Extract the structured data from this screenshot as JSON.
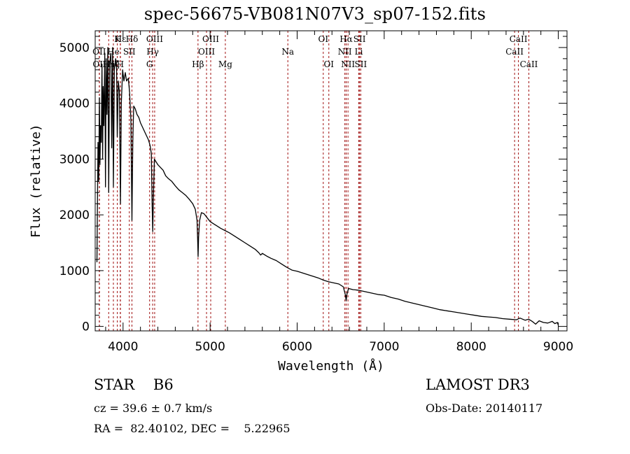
{
  "chart_data": {
    "type": "line",
    "title": "spec-56675-VB081N07V3_sp07-152.fits",
    "xlabel": "Wavelength (Å)",
    "ylabel": "Flux (relative)",
    "xlim": [
      3680,
      9100
    ],
    "ylim": [
      -80,
      5300
    ],
    "xticks": [
      4000,
      5000,
      6000,
      7000,
      8000,
      9000
    ],
    "yticks": [
      0,
      1000,
      2000,
      3000,
      4000,
      5000
    ],
    "x_minor_step": 200,
    "y_minor_step": 200,
    "grid": false,
    "line_color": "#000000",
    "marker_line_color": "#a01010",
    "series": [
      {
        "name": "flux",
        "points": [
          [
            3700,
            1150
          ],
          [
            3712,
            3300
          ],
          [
            3720,
            2600
          ],
          [
            3728,
            4100
          ],
          [
            3735,
            2900
          ],
          [
            3742,
            3600
          ],
          [
            3750,
            3300
          ],
          [
            3758,
            4700
          ],
          [
            3765,
            3000
          ],
          [
            3772,
            4300
          ],
          [
            3780,
            3600
          ],
          [
            3790,
            4900
          ],
          [
            3798,
            2500
          ],
          [
            3806,
            4800
          ],
          [
            3815,
            3800
          ],
          [
            3825,
            5000
          ],
          [
            3835,
            2400
          ],
          [
            3845,
            4700
          ],
          [
            3860,
            4900
          ],
          [
            3870,
            3200
          ],
          [
            3880,
            5000
          ],
          [
            3889,
            2500
          ],
          [
            3900,
            4600
          ],
          [
            3915,
            4800
          ],
          [
            3925,
            4700
          ],
          [
            3933,
            3400
          ],
          [
            3945,
            4400
          ],
          [
            3958,
            4200
          ],
          [
            3970,
            2200
          ],
          [
            3980,
            4000
          ],
          [
            3995,
            4600
          ],
          [
            4010,
            4400
          ],
          [
            4026,
            4550
          ],
          [
            4040,
            4400
          ],
          [
            4060,
            4450
          ],
          [
            4075,
            4200
          ],
          [
            4090,
            3700
          ],
          [
            4102,
            1900
          ],
          [
            4112,
            3300
          ],
          [
            4122,
            3950
          ],
          [
            4140,
            3900
          ],
          [
            4160,
            3800
          ],
          [
            4180,
            3750
          ],
          [
            4200,
            3650
          ],
          [
            4230,
            3550
          ],
          [
            4260,
            3450
          ],
          [
            4290,
            3350
          ],
          [
            4310,
            3250
          ],
          [
            4325,
            3100
          ],
          [
            4334,
            2200
          ],
          [
            4341,
            1700
          ],
          [
            4348,
            2300
          ],
          [
            4360,
            3000
          ],
          [
            4380,
            2950
          ],
          [
            4400,
            2900
          ],
          [
            4430,
            2850
          ],
          [
            4460,
            2800
          ],
          [
            4490,
            2700
          ],
          [
            4520,
            2650
          ],
          [
            4560,
            2600
          ],
          [
            4600,
            2520
          ],
          [
            4640,
            2450
          ],
          [
            4680,
            2400
          ],
          [
            4720,
            2350
          ],
          [
            4760,
            2280
          ],
          [
            4800,
            2200
          ],
          [
            4830,
            2100
          ],
          [
            4850,
            1900
          ],
          [
            4858,
            1500
          ],
          [
            4862,
            1250
          ],
          [
            4868,
            1600
          ],
          [
            4880,
            1900
          ],
          [
            4900,
            2040
          ],
          [
            4930,
            2020
          ],
          [
            4960,
            1960
          ],
          [
            5000,
            1880
          ],
          [
            5040,
            1840
          ],
          [
            5080,
            1800
          ],
          [
            5120,
            1760
          ],
          [
            5170,
            1720
          ],
          [
            5220,
            1680
          ],
          [
            5280,
            1620
          ],
          [
            5340,
            1560
          ],
          [
            5400,
            1500
          ],
          [
            5460,
            1440
          ],
          [
            5520,
            1380
          ],
          [
            5560,
            1320
          ],
          [
            5580,
            1280
          ],
          [
            5600,
            1310
          ],
          [
            5650,
            1260
          ],
          [
            5700,
            1220
          ],
          [
            5760,
            1180
          ],
          [
            5820,
            1120
          ],
          [
            5880,
            1060
          ],
          [
            5940,
            1010
          ],
          [
            6000,
            990
          ],
          [
            6060,
            960
          ],
          [
            6120,
            930
          ],
          [
            6180,
            900
          ],
          [
            6240,
            870
          ],
          [
            6300,
            830
          ],
          [
            6360,
            800
          ],
          [
            6420,
            780
          ],
          [
            6480,
            760
          ],
          [
            6530,
            710
          ],
          [
            6555,
            560
          ],
          [
            6563,
            460
          ],
          [
            6572,
            580
          ],
          [
            6590,
            680
          ],
          [
            6640,
            660
          ],
          [
            6700,
            650
          ],
          [
            6760,
            630
          ],
          [
            6820,
            610
          ],
          [
            6880,
            590
          ],
          [
            6940,
            570
          ],
          [
            7000,
            560
          ],
          [
            7080,
            520
          ],
          [
            7160,
            490
          ],
          [
            7240,
            450
          ],
          [
            7320,
            420
          ],
          [
            7400,
            390
          ],
          [
            7480,
            360
          ],
          [
            7560,
            330
          ],
          [
            7640,
            300
          ],
          [
            7720,
            280
          ],
          [
            7800,
            260
          ],
          [
            7880,
            240
          ],
          [
            7960,
            220
          ],
          [
            8040,
            200
          ],
          [
            8120,
            180
          ],
          [
            8200,
            170
          ],
          [
            8280,
            160
          ],
          [
            8360,
            140
          ],
          [
            8440,
            130
          ],
          [
            8520,
            120
          ],
          [
            8560,
            150
          ],
          [
            8620,
            110
          ],
          [
            8660,
            130
          ],
          [
            8700,
            90
          ],
          [
            8740,
            40
          ],
          [
            8780,
            100
          ],
          [
            8830,
            70
          ],
          [
            8880,
            60
          ],
          [
            8930,
            90
          ],
          [
            8960,
            50
          ],
          [
            8990,
            70
          ],
          [
            9000,
            20
          ]
        ]
      }
    ],
    "line_markers": [
      {
        "label": "Hε",
        "wavelength": 3970,
        "row": 0
      },
      {
        "label": "K",
        "wavelength": 3934,
        "row": 0
      },
      {
        "label": "Hδ",
        "wavelength": 4102,
        "row": 0
      },
      {
        "label": "OIII",
        "wavelength": 4363,
        "row": 0
      },
      {
        "label": "OIII",
        "wavelength": 5007,
        "row": 0
      },
      {
        "label": "OI",
        "wavelength": 6300,
        "row": 0
      },
      {
        "label": "Hα",
        "wavelength": 6563,
        "row": 0
      },
      {
        "label": "SII",
        "wavelength": 6717,
        "row": 0
      },
      {
        "label": "CaII",
        "wavelength": 8542,
        "row": 0
      },
      {
        "label": "OII",
        "wavelength": 3727,
        "row": 1
      },
      {
        "label": "He",
        "wavelength": 3889,
        "row": 1
      },
      {
        "label": "SII",
        "wavelength": 4072,
        "row": 1
      },
      {
        "label": "Hγ",
        "wavelength": 4340,
        "row": 1
      },
      {
        "label": "OIII",
        "wavelength": 4959,
        "row": 1
      },
      {
        "label": "Na",
        "wavelength": 5893,
        "row": 1
      },
      {
        "label": "NII",
        "wavelength": 6548,
        "row": 1
      },
      {
        "label": "Li",
        "wavelength": 6708,
        "row": 1
      },
      {
        "label": "CaII",
        "wavelength": 8498,
        "row": 1
      },
      {
        "label": "OII",
        "wavelength": 3729,
        "row": 2
      },
      {
        "label": "Hη",
        "wavelength": 3835,
        "row": 2
      },
      {
        "label": "Hζ",
        "wavelength": 3889,
        "row": 2
      },
      {
        "label": "H",
        "wavelength": 3968,
        "row": 2
      },
      {
        "label": "G",
        "wavelength": 4305,
        "row": 2
      },
      {
        "label": "Hβ",
        "wavelength": 4861,
        "row": 2
      },
      {
        "label": "Mg",
        "wavelength": 5175,
        "row": 2
      },
      {
        "label": "OI",
        "wavelength": 6364,
        "row": 2
      },
      {
        "label": "NII",
        "wavelength": 6584,
        "row": 2
      },
      {
        "label": "SII",
        "wavelength": 6731,
        "row": 2
      },
      {
        "label": "CaII",
        "wavelength": 8662,
        "row": 2
      }
    ]
  },
  "info": {
    "object_class": "STAR    B6",
    "redshift": "cz = 39.6 ± 0.7 km/s",
    "coords": "RA =  82.40102, DEC =    5.22965",
    "survey": "LAMOST DR3",
    "obs_date": "Obs-Date: 20140117"
  }
}
